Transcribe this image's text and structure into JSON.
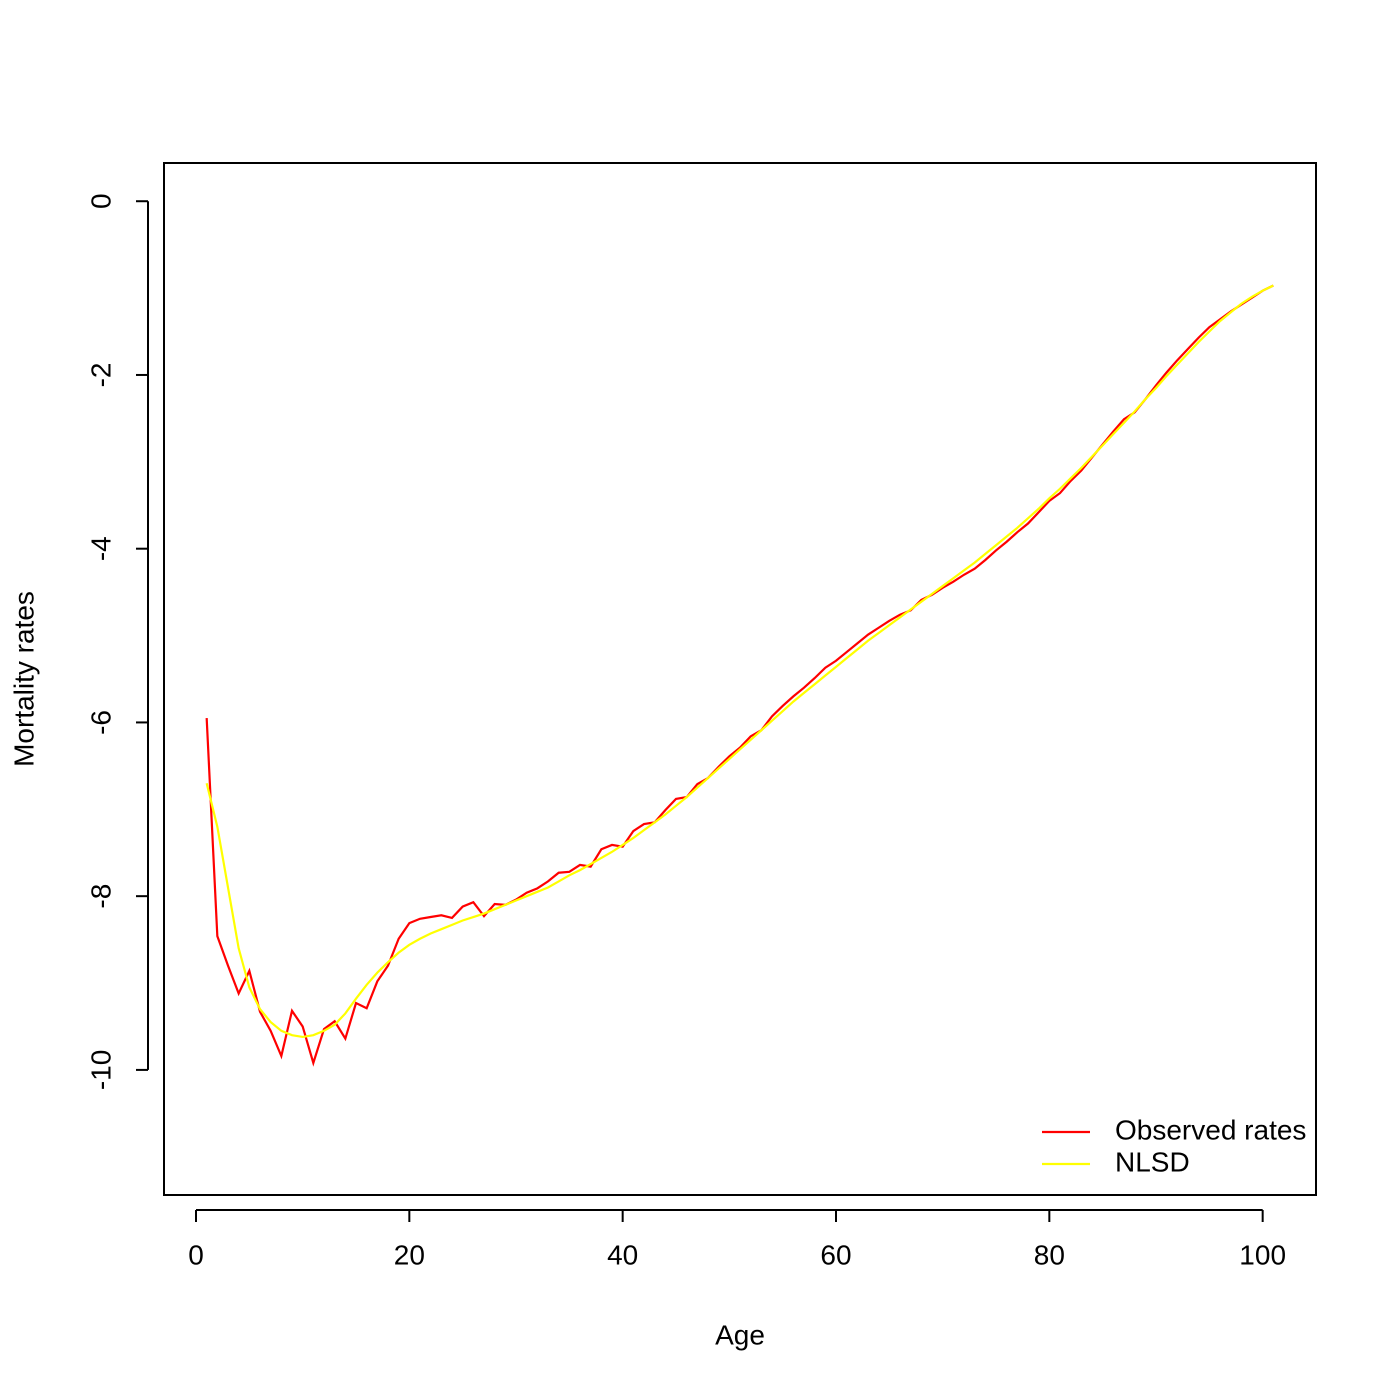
{
  "chart_data": {
    "type": "line",
    "x_label": "Age",
    "y_label": "Mortality rates",
    "x": [
      1,
      2,
      3,
      4,
      5,
      6,
      7,
      8,
      9,
      10,
      11,
      12,
      13,
      14,
      15,
      16,
      17,
      18,
      19,
      20,
      21,
      22,
      23,
      24,
      25,
      26,
      27,
      28,
      29,
      30,
      31,
      32,
      33,
      34,
      35,
      36,
      37,
      38,
      39,
      40,
      41,
      42,
      43,
      44,
      45,
      46,
      47,
      48,
      49,
      50,
      51,
      52,
      53,
      54,
      55,
      56,
      57,
      58,
      59,
      60,
      61,
      62,
      63,
      64,
      65,
      66,
      67,
      68,
      69,
      70,
      71,
      72,
      73,
      74,
      75,
      76,
      77,
      78,
      79,
      80,
      81,
      82,
      83,
      84,
      85,
      86,
      87,
      88,
      89,
      90,
      91,
      92,
      93,
      94,
      95,
      96,
      97,
      98,
      99,
      100,
      101
    ],
    "series": [
      {
        "name": "Observed rates",
        "color": "#ff0000",
        "values": [
          -5.95,
          -8.46,
          -8.8,
          -9.12,
          -8.86,
          -9.33,
          -9.55,
          -9.84,
          -9.32,
          -9.5,
          -9.92,
          -9.53,
          -9.44,
          -9.64,
          -9.23,
          -9.29,
          -8.98,
          -8.8,
          -8.49,
          -8.31,
          -8.26,
          -8.24,
          -8.22,
          -8.25,
          -8.12,
          -8.07,
          -8.23,
          -8.09,
          -8.1,
          -8.04,
          -7.96,
          -7.91,
          -7.83,
          -7.73,
          -7.72,
          -7.64,
          -7.66,
          -7.46,
          -7.41,
          -7.43,
          -7.25,
          -7.17,
          -7.15,
          -7.01,
          -6.88,
          -6.86,
          -6.71,
          -6.64,
          -6.51,
          -6.39,
          -6.29,
          -6.16,
          -6.09,
          -5.93,
          -5.81,
          -5.7,
          -5.6,
          -5.49,
          -5.37,
          -5.29,
          -5.19,
          -5.09,
          -4.99,
          -4.91,
          -4.83,
          -4.76,
          -4.71,
          -4.59,
          -4.53,
          -4.45,
          -4.38,
          -4.3,
          -4.23,
          -4.13,
          -4.02,
          -3.92,
          -3.81,
          -3.71,
          -3.58,
          -3.45,
          -3.36,
          -3.22,
          -3.1,
          -2.95,
          -2.8,
          -2.65,
          -2.51,
          -2.43,
          -2.28,
          -2.12,
          -1.97,
          -1.83,
          -1.7,
          -1.57,
          -1.45,
          -1.36,
          -1.27,
          -1.19,
          -1.11,
          -1.03,
          -0.97
        ]
      },
      {
        "name": "NLSD",
        "color": "#ffff00",
        "values": [
          -6.7,
          -7.2,
          -7.9,
          -8.6,
          -9.05,
          -9.3,
          -9.45,
          -9.55,
          -9.6,
          -9.62,
          -9.6,
          -9.55,
          -9.48,
          -9.35,
          -9.18,
          -9.02,
          -8.88,
          -8.76,
          -8.65,
          -8.56,
          -8.49,
          -8.43,
          -8.38,
          -8.33,
          -8.28,
          -8.24,
          -8.2,
          -8.15,
          -8.1,
          -8.05,
          -8.0,
          -7.95,
          -7.9,
          -7.83,
          -7.76,
          -7.7,
          -7.63,
          -7.56,
          -7.49,
          -7.41,
          -7.33,
          -7.24,
          -7.15,
          -7.06,
          -6.96,
          -6.86,
          -6.75,
          -6.64,
          -6.53,
          -6.42,
          -6.31,
          -6.2,
          -6.09,
          -5.98,
          -5.87,
          -5.76,
          -5.66,
          -5.56,
          -5.46,
          -5.36,
          -5.26,
          -5.16,
          -5.06,
          -4.97,
          -4.88,
          -4.79,
          -4.7,
          -4.61,
          -4.52,
          -4.43,
          -4.34,
          -4.25,
          -4.16,
          -4.06,
          -3.96,
          -3.86,
          -3.76,
          -3.65,
          -3.54,
          -3.42,
          -3.31,
          -3.19,
          -3.07,
          -2.94,
          -2.81,
          -2.68,
          -2.55,
          -2.42,
          -2.28,
          -2.15,
          -2.01,
          -1.88,
          -1.75,
          -1.62,
          -1.5,
          -1.38,
          -1.28,
          -1.18,
          -1.1,
          -1.03,
          -0.97
        ]
      }
    ],
    "xlim": [
      -3,
      105
    ],
    "ylim": [
      -11.44,
      0.44
    ],
    "xticks": [
      0,
      20,
      40,
      60,
      80,
      100
    ],
    "yticks": [
      -10,
      -8,
      -6,
      -4,
      -2,
      0
    ],
    "legend": "bottom-right"
  }
}
